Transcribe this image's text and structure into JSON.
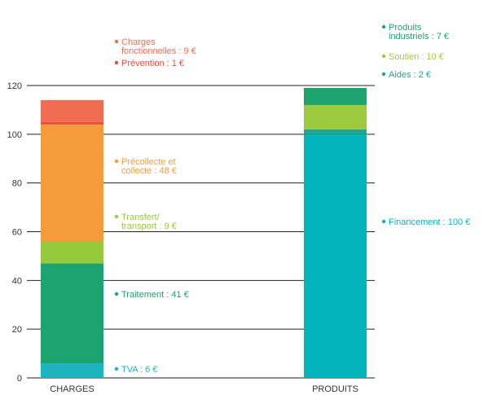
{
  "chart_data": {
    "type": "bar",
    "stacked": true,
    "categories": [
      "CHARGES",
      "PRODUITS"
    ],
    "ylim": [
      0,
      120
    ],
    "yticks": [
      0,
      20,
      40,
      60,
      80,
      100,
      120
    ],
    "grid": true,
    "legend": "inline labels beside bars",
    "stacks": [
      {
        "category": "CHARGES",
        "segments": [
          {
            "value": 6,
            "color": "#1cb4bf",
            "label_lines": [
              "TVA : 6 €"
            ]
          },
          {
            "value": 41,
            "color": "#1da36e",
            "label_lines": [
              "Traitement : 41 €"
            ]
          },
          {
            "value": 9,
            "color": "#97c93c",
            "label_lines": [
              "Transfert/",
              "transport : 9 €"
            ]
          },
          {
            "value": 48,
            "color": "#f59c3a",
            "label_lines": [
              "Précollecte et",
              "collecte : 48 €"
            ]
          },
          {
            "value": 1,
            "color": "#ee4a3c",
            "label_lines": [
              "Prévention : 1 €"
            ]
          },
          {
            "value": 9,
            "color": "#f26c52",
            "label_lines": [
              "Charges",
              "fonctionnelles : 9 €"
            ]
          }
        ]
      },
      {
        "category": "PRODUITS",
        "segments": [
          {
            "value": 100,
            "color": "#02b5bd",
            "label_lines": [
              "Financement : 100 €"
            ]
          },
          {
            "value": 2,
            "color": "#23a591",
            "label_lines": [
              "Aides : 2 €"
            ]
          },
          {
            "value": 10,
            "color": "#9ccb3f",
            "label_lines": [
              "Soutien : 10 €"
            ]
          },
          {
            "value": 7,
            "color": "#1da36e",
            "label_lines": [
              "Produits",
              "industriels : 7 €"
            ]
          }
        ]
      }
    ]
  }
}
